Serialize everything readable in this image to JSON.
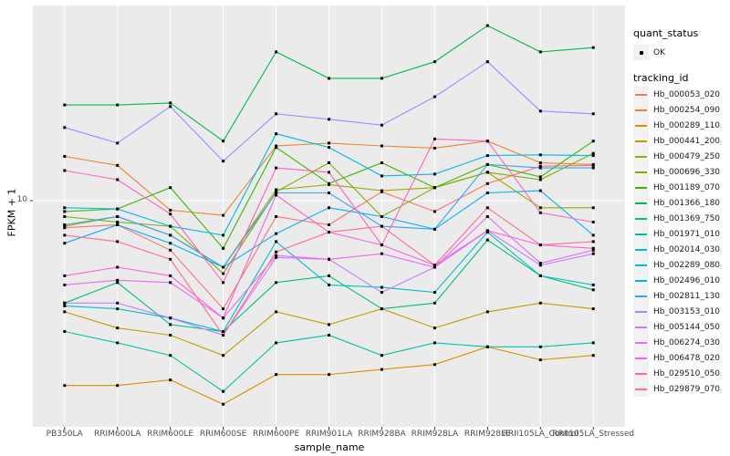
{
  "axes": {
    "x_title": "sample_name",
    "y_title": "FPKM + 1"
  },
  "legend": {
    "quant_status": {
      "title": "quant_status",
      "items": [
        {
          "label": "OK",
          "marker": "black-square-point"
        }
      ]
    },
    "tracking": {
      "title": "tracking_id"
    }
  },
  "colors": {
    "background": "#FFFFFF",
    "panel_bg": "#EBEBEB",
    "grid": "#FFFFFF",
    "tick_mark": "#333333",
    "tick_text": "#4D4D4D",
    "axis_text": "#000000",
    "legend_key_bg": "#F2F2F2",
    "point": "#000000"
  },
  "chart_data": {
    "type": "line",
    "title": "",
    "xlabel": "sample_name",
    "ylabel": "FPKM + 1",
    "y_scale": "log10",
    "ylim": [
      1.4,
      55
    ],
    "y_ticks": [
      {
        "value": 10,
        "label": "10"
      }
    ],
    "grid": {
      "vertical": "one-per-category",
      "horizontal": "at-y-ticks"
    },
    "legend_position": "right",
    "point_marker": {
      "shape": "square",
      "color": "#000000",
      "size": 3
    },
    "categories": [
      "PB350LA",
      "RRIM600LA",
      "RRIM600LE",
      "RRIM600SE",
      "RRIM600PE",
      "RRIM901LA",
      "RRIM928BA",
      "RRIM928LA",
      "RRIM928LE",
      "RRII105LA_Control",
      "RRII105LA_Stressed"
    ],
    "series": [
      {
        "tracking_id": "Hb_000053_020",
        "quant_status": "OK",
        "color": "#F8766D",
        "values": [
          7.9,
          8.1,
          6.5,
          3.9,
          8.7,
          8.1,
          10.8,
          9.1,
          11.6,
          13.5,
          13.6
        ]
      },
      {
        "tracking_id": "Hb_000254_090",
        "quant_status": "OK",
        "color": "#EA8331",
        "values": [
          14.7,
          13.6,
          9.2,
          8.8,
          16.1,
          16.5,
          16.1,
          15.8,
          16.8,
          13.9,
          13.7
        ]
      },
      {
        "tracking_id": "Hb_000289_110",
        "quant_status": "OK",
        "color": "#D89000",
        "values": [
          2.0,
          2.0,
          2.1,
          1.7,
          2.2,
          2.2,
          2.3,
          2.4,
          2.8,
          2.5,
          2.6
        ]
      },
      {
        "tracking_id": "Hb_000441_200",
        "quant_status": "OK",
        "color": "#C09B00",
        "values": [
          3.8,
          3.3,
          3.1,
          2.6,
          3.8,
          3.4,
          3.9,
          3.3,
          3.8,
          4.1,
          3.9
        ]
      },
      {
        "tracking_id": "Hb_000479_250",
        "quant_status": "OK",
        "color": "#A3A500",
        "values": [
          8.0,
          8.7,
          7.4,
          5.6,
          11.0,
          11.5,
          10.9,
          11.2,
          12.8,
          9.4,
          9.4
        ]
      },
      {
        "tracking_id": "Hb_000696_330",
        "quant_status": "OK",
        "color": "#7CAE00",
        "values": [
          8.7,
          8.3,
          8.0,
          5.3,
          10.8,
          13.9,
          8.7,
          11.2,
          12.8,
          12.0,
          15.1
        ]
      },
      {
        "tracking_id": "Hb_001189_070",
        "quant_status": "OK",
        "color": "#39B600",
        "values": [
          9.1,
          9.3,
          11.2,
          6.6,
          15.9,
          11.6,
          13.9,
          11.2,
          13.7,
          12.3,
          16.8
        ]
      },
      {
        "tracking_id": "Hb_001366_180",
        "quant_status": "OK",
        "color": "#00BB4E",
        "values": [
          23.0,
          23.0,
          23.4,
          16.8,
          36.5,
          29.0,
          29.0,
          33.5,
          45.9,
          36.5,
          37.9
        ]
      },
      {
        "tracking_id": "Hb_001369_750",
        "quant_status": "OK",
        "color": "#00BF7D",
        "values": [
          4.1,
          4.9,
          3.4,
          3.2,
          4.9,
          5.2,
          3.9,
          4.1,
          7.1,
          5.2,
          4.6
        ]
      },
      {
        "tracking_id": "Hb_001971_010",
        "quant_status": "OK",
        "color": "#00C1A3",
        "values": [
          3.2,
          2.9,
          2.6,
          1.9,
          2.9,
          3.1,
          2.6,
          2.9,
          2.8,
          2.8,
          2.9
        ]
      },
      {
        "tracking_id": "Hb_002014_030",
        "quant_status": "OK",
        "color": "#00BFC4",
        "values": [
          4.0,
          3.9,
          3.6,
          3.2,
          7.0,
          4.8,
          4.7,
          4.5,
          7.6,
          5.2,
          4.8
        ]
      },
      {
        "tracking_id": "Hb_002289_080",
        "quant_status": "OK",
        "color": "#00BAE0",
        "values": [
          9.4,
          9.3,
          8.0,
          7.4,
          17.9,
          15.9,
          12.4,
          12.6,
          14.8,
          14.9,
          14.8
        ]
      },
      {
        "tracking_id": "Hb_002496_010",
        "quant_status": "OK",
        "color": "#00B0F6",
        "values": [
          6.9,
          8.1,
          6.9,
          5.6,
          7.5,
          9.4,
          8.7,
          7.8,
          10.7,
          10.9,
          7.4
        ]
      },
      {
        "tracking_id": "Hb_002811_130",
        "quant_status": "OK",
        "color": "#35A2FF",
        "values": [
          8.1,
          8.7,
          7.4,
          5.6,
          10.7,
          10.7,
          8.0,
          7.8,
          13.7,
          13.3,
          13.3
        ]
      },
      {
        "tracking_id": "Hb_003153_010",
        "quant_status": "OK",
        "color": "#9590FF",
        "values": [
          18.9,
          16.5,
          22.7,
          14.1,
          21.3,
          20.3,
          19.3,
          24.7,
          33.5,
          21.8,
          21.3
        ]
      },
      {
        "tracking_id": "Hb_005144_050",
        "quant_status": "OK",
        "color": "#C77CFF",
        "values": [
          4.1,
          4.1,
          3.6,
          3.1,
          6.1,
          6.0,
          4.5,
          5.6,
          7.7,
          5.7,
          6.3
        ]
      },
      {
        "tracking_id": "Hb_006274_030",
        "quant_status": "OK",
        "color": "#E76BF3",
        "values": [
          4.8,
          5.0,
          4.9,
          3.6,
          6.2,
          6.0,
          6.3,
          5.6,
          8.7,
          5.8,
          6.5
        ]
      },
      {
        "tracking_id": "Hb_006478_020",
        "quant_status": "OK",
        "color": "#FA62DB",
        "values": [
          5.2,
          5.6,
          5.2,
          3.6,
          10.5,
          7.6,
          6.8,
          5.7,
          7.7,
          6.8,
          6.6
        ]
      },
      {
        "tracking_id": "Hb_029510_050",
        "quant_status": "OK",
        "color": "#FF62BC",
        "values": [
          13.0,
          12.0,
          8.9,
          4.9,
          13.3,
          12.8,
          6.8,
          17.1,
          16.8,
          9.0,
          8.3
        ]
      },
      {
        "tracking_id": "Hb_029879_070",
        "quant_status": "OK",
        "color": "#FF6A98",
        "values": [
          7.4,
          7.0,
          6.0,
          3.1,
          6.4,
          7.6,
          8.0,
          5.7,
          9.4,
          6.8,
          7.0
        ]
      }
    ]
  }
}
